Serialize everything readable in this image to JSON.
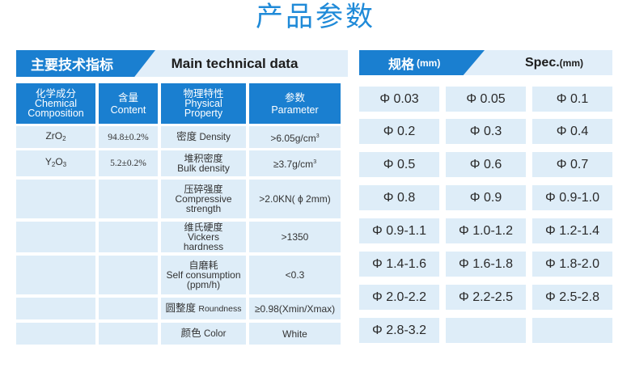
{
  "title": "产品参数",
  "technical": {
    "header_cn": "主要技术指标",
    "header_en": "Main technical data",
    "columns": [
      {
        "cn": "化学成分",
        "en": "Chemical Composition"
      },
      {
        "cn": "含量",
        "en": "Content"
      },
      {
        "cn": "物理特性",
        "en": "Physical Property"
      },
      {
        "cn": "参数",
        "en": "Parameter"
      }
    ],
    "composition": [
      {
        "el": "ZrO",
        "sub": "2",
        "content": "94.8±0.2%"
      },
      {
        "el1": "Y",
        "sub1": "2",
        "el2": "O",
        "sub2": "3",
        "content": "5.2±0.2%"
      }
    ],
    "properties": [
      {
        "cn": "密度",
        "en": "Density",
        "value": ">6.05g/cm",
        "sup": "3"
      },
      {
        "cn": "堆积密度",
        "en": "Bulk density",
        "value": "≥3.7g/cm",
        "sup": "3"
      },
      {
        "cn": "压碎强度",
        "en": "Compressive strength",
        "value": ">2.0KN( ϕ 2mm)"
      },
      {
        "cn": "维氏硬度",
        "en": "Vickers hardness",
        "value": ">1350"
      },
      {
        "cn": "自磨耗",
        "en": "Self consumption (ppm/h)",
        "value": "<0.3"
      },
      {
        "cn": "圆整度",
        "en": "Roundness",
        "value": "≥0.98(Xmin/Xmax)"
      },
      {
        "cn": "颜色",
        "en": "Color",
        "value": "White"
      }
    ]
  },
  "spec": {
    "header_cn": "规格",
    "header_cn_unit": "(mm)",
    "header_en": "Spec.",
    "header_en_unit": "(mm)",
    "items": [
      "Φ 0.03",
      "Φ 0.05",
      "Φ 0.1",
      "Φ 0.2",
      "Φ 0.3",
      "Φ 0.4",
      "Φ 0.5",
      "Φ 0.6",
      "Φ 0.7",
      "Φ 0.8",
      "Φ 0.9",
      "Φ 0.9-1.0",
      "Φ 0.9-1.1",
      "Φ 1.0-1.2",
      "Φ 1.2-1.4",
      "Φ 1.4-1.6",
      "Φ 1.6-1.8",
      "Φ 1.8-2.0",
      "Φ 2.0-2.2",
      "Φ 2.2-2.5",
      "Φ 2.5-2.8",
      "Φ 2.8-3.2",
      "",
      ""
    ]
  },
  "colors": {
    "accent": "#1a7fd0",
    "cell": "#deedf8",
    "title": "#1f8ad8"
  }
}
